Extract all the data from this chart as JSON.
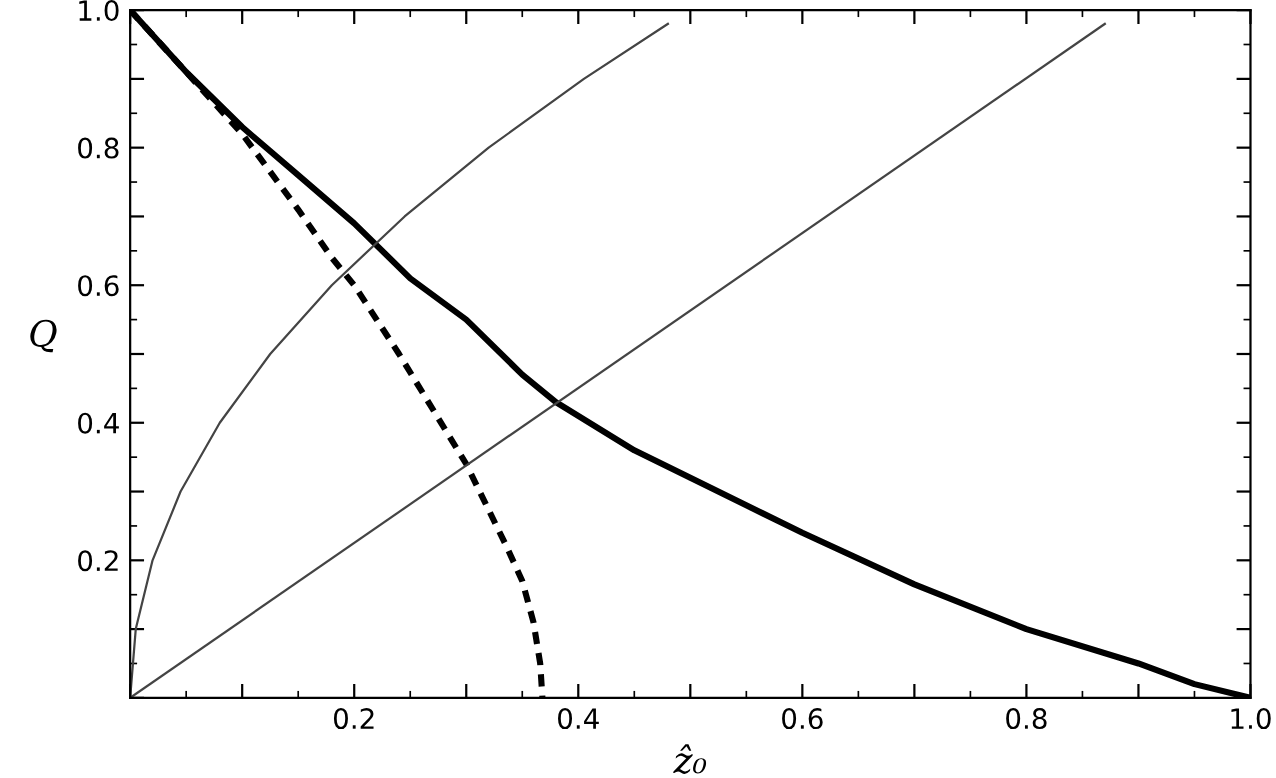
{
  "chart_data": {
    "type": "line",
    "xlabel": "ẑ₀",
    "ylabel": "Q",
    "xlim": [
      0,
      1
    ],
    "ylim": [
      0,
      1
    ],
    "xticks": [
      {
        "value": 0,
        "label": null
      },
      {
        "value": 0.1,
        "label": null
      },
      0.2,
      {
        "value": 0.3,
        "label": null
      },
      0.4,
      {
        "value": 0.5,
        "label": null
      },
      0.6,
      {
        "value": 0.7,
        "label": null
      },
      0.8,
      {
        "value": 0.9,
        "label": null
      },
      {
        "value": 1,
        "label": "1.0"
      }
    ],
    "yticks": [
      {
        "value": 0,
        "label": null
      },
      {
        "value": 0.1,
        "label": null
      },
      0.2,
      {
        "value": 0.3,
        "label": null
      },
      0.4,
      {
        "value": 0.5,
        "label": null
      },
      0.6,
      {
        "value": 0.7,
        "label": null
      },
      0.8,
      {
        "value": 0.9,
        "label": null
      },
      {
        "value": 1,
        "label": "1.0"
      }
    ],
    "grid": false,
    "legend": false,
    "series": [
      {
        "color": "#000000",
        "line_style": "solid",
        "x": [
          0,
          0.05,
          0.1,
          0.15,
          0.2,
          0.25,
          0.3,
          0.35,
          0.38,
          0.45,
          0.5,
          0.6,
          0.7,
          0.8,
          0.9,
          0.95,
          1
        ],
        "values": [
          1,
          0.91,
          0.83,
          0.76,
          0.69,
          0.61,
          0.55,
          0.47,
          0.43,
          0.36,
          0.32,
          0.24,
          0.165,
          0.1,
          0.05,
          0.02,
          0
        ]
      },
      {
        "color": "#000000",
        "line_style": "dashed",
        "x": [
          0,
          0.05,
          0.1,
          0.15,
          0.18,
          0.2,
          0.24,
          0.27,
          0.3,
          0.336,
          0.35,
          0.36,
          0.366,
          0.368
        ],
        "values": [
          1,
          0.91,
          0.82,
          0.71,
          0.64,
          0.6,
          0.5,
          0.42,
          0.34,
          0.22,
          0.17,
          0.11,
          0.05,
          0
        ]
      },
      {
        "color": "#444444",
        "line_style": "solid",
        "x": [
          0,
          0.005,
          0.02,
          0.045,
          0.08,
          0.125,
          0.18,
          0.245,
          0.32,
          0.405,
          0.48
        ],
        "values": [
          0,
          0.1,
          0.2,
          0.3,
          0.4,
          0.5,
          0.6,
          0.7,
          0.8,
          0.9,
          0.98
        ]
      },
      {
        "color": "#444444",
        "line_style": "solid",
        "x": [
          0,
          0.87
        ],
        "values": [
          0,
          0.98
        ]
      }
    ]
  }
}
